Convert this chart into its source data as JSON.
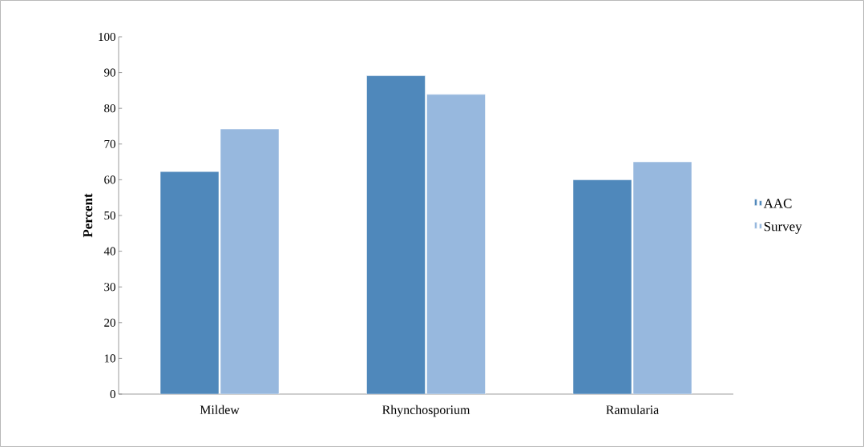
{
  "chart_data": {
    "type": "bar",
    "ylabel": "Percent",
    "categories": [
      "Mildew",
      "Rhynchosporium",
      "Ramularia"
    ],
    "series": [
      {
        "name": "AAC",
        "color": "#4f88bb",
        "values": [
          62.3,
          89.1,
          60
        ]
      },
      {
        "name": "Survey",
        "color": "#97b8de",
        "values": [
          74.2,
          83.9,
          65
        ]
      }
    ],
    "ylim": [
      0,
      100
    ],
    "yticks": [
      0,
      10,
      20,
      30,
      40,
      50,
      60,
      70,
      80,
      90,
      100
    ],
    "grid": false,
    "legend": "right"
  }
}
